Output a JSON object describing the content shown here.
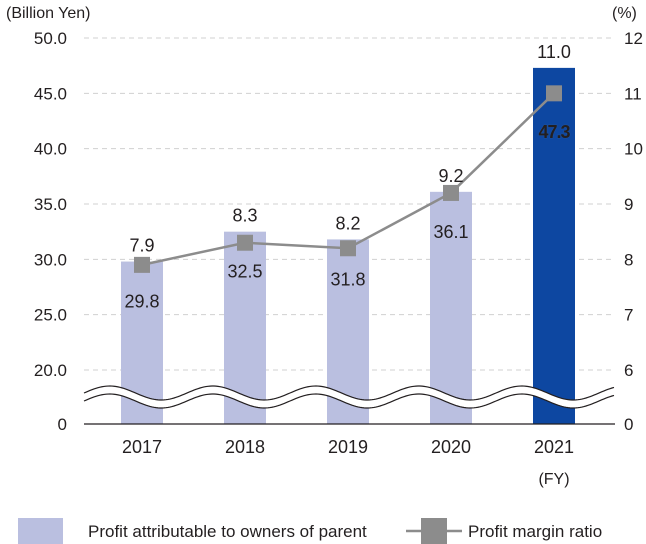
{
  "chart_data": {
    "type": "bar",
    "title": "",
    "categories": [
      "2017",
      "2018",
      "2019",
      "2020",
      "2021"
    ],
    "x_unit_label": "(FY)",
    "left_axis": {
      "label": "(Billion Yen)",
      "ticks": [
        "0",
        "20.0",
        "25.0",
        "30.0",
        "35.0",
        "40.0",
        "45.0",
        "50.0"
      ],
      "ylim": [
        20,
        50
      ],
      "broken_axis": true
    },
    "right_axis": {
      "label": "(%)",
      "ticks": [
        "0",
        "6",
        "7",
        "8",
        "9",
        "10",
        "11",
        "12"
      ],
      "ylim": [
        6,
        12
      ],
      "broken_axis": true
    },
    "grid": true,
    "legend_position": "bottom",
    "series": [
      {
        "name": "Profit attributable to owners of parent",
        "type": "bar",
        "axis": "left",
        "values": [
          29.8,
          32.5,
          31.8,
          36.1,
          47.3
        ],
        "labels": [
          "29.8",
          "32.5",
          "31.8",
          "36.1",
          "47.3"
        ],
        "color": "#babfe0",
        "highlight_color": "#0d47a1",
        "highlight_index": 4
      },
      {
        "name": "Profit margin ratio",
        "type": "line",
        "axis": "right",
        "values": [
          7.9,
          8.3,
          8.2,
          9.2,
          11.0
        ],
        "labels": [
          "7.9",
          "8.3",
          "8.2",
          "9.2",
          "11.0"
        ],
        "color": "#8c8c8c",
        "marker": "square"
      }
    ],
    "highlight_label_color": "#1a4fa0"
  }
}
